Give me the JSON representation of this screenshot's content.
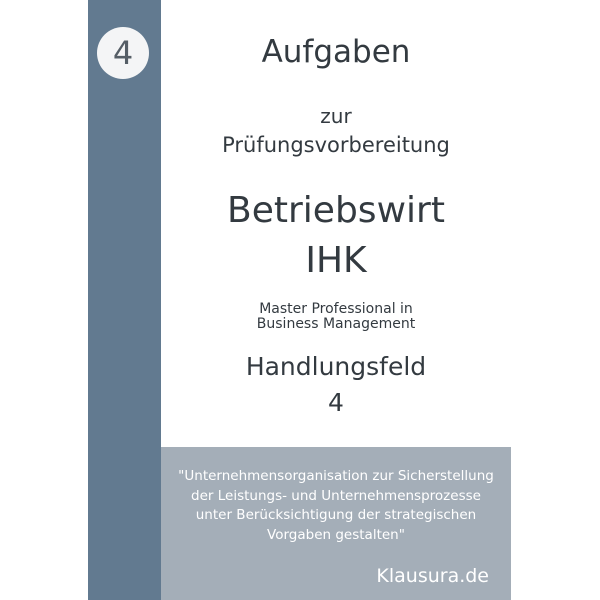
{
  "cover": {
    "volume_number": "4",
    "title_line1": "Aufgaben",
    "title_line2": "zur",
    "title_line3": "Prüfungsvorbereitung",
    "subject_line1": "Betriebswirt",
    "subject_line2": "IHK",
    "subtitle_line1": "Master Professional in",
    "subtitle_line2": "Business Management",
    "field_label": "Handlungsfeld",
    "field_number": "4",
    "quote_lines": [
      "\"Unternehmensorganisation zur Sicherstellung",
      "der Leistungs- und Unternehmensprozesse",
      "unter Berücksichtigung der strategischen",
      "Vorgaben gestalten\""
    ],
    "publisher": "Klausura.de"
  },
  "colors": {
    "spine": "#627a90",
    "quote_box": "#a4aeb8",
    "text": "#333a40"
  }
}
